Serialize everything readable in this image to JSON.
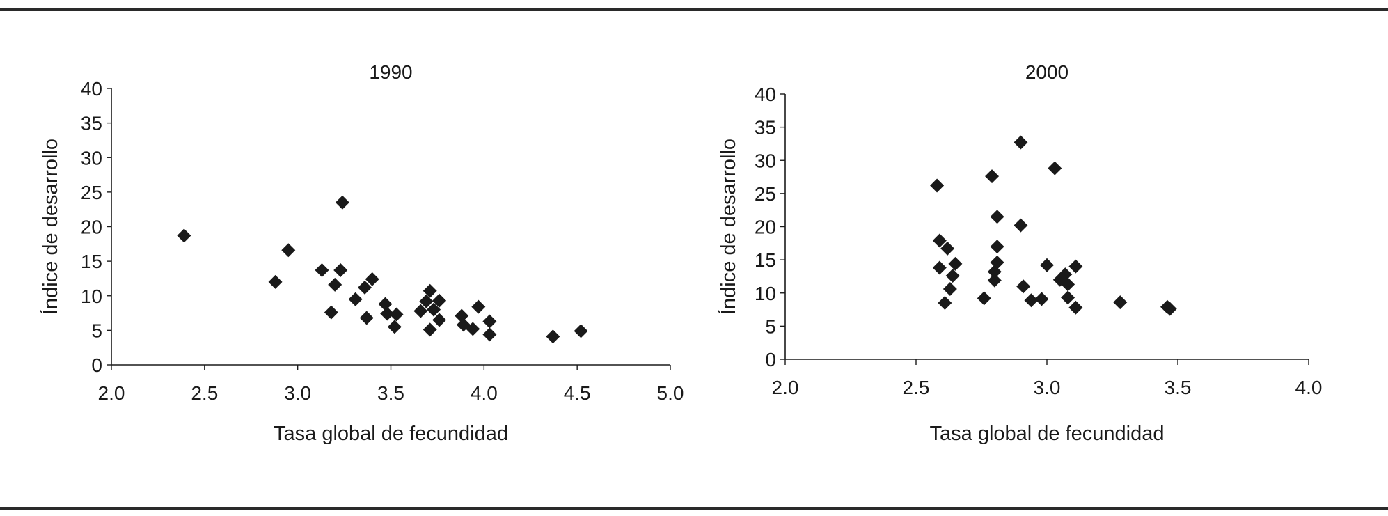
{
  "chart_data": [
    {
      "type": "scatter",
      "title": "1990",
      "xlabel": "Tasa global de fecundidad",
      "ylabel": "Índice de desarrollo",
      "xlim": [
        2.0,
        5.0
      ],
      "ylim": [
        0,
        40
      ],
      "xticks": [
        "2.0",
        "2.5",
        "3.0",
        "3.5",
        "4.0",
        "4.5",
        "5.0"
      ],
      "yticks": [
        "0",
        "5",
        "10",
        "15",
        "20",
        "25",
        "30",
        "35",
        "40"
      ],
      "marker": "diamond",
      "color": "#1a1a1a",
      "points": [
        {
          "x": 2.39,
          "y": 18.7
        },
        {
          "x": 2.88,
          "y": 12.0
        },
        {
          "x": 2.95,
          "y": 16.6
        },
        {
          "x": 3.13,
          "y": 13.7
        },
        {
          "x": 3.18,
          "y": 7.6
        },
        {
          "x": 3.2,
          "y": 11.6
        },
        {
          "x": 3.23,
          "y": 13.7
        },
        {
          "x": 3.24,
          "y": 23.5
        },
        {
          "x": 3.31,
          "y": 9.5
        },
        {
          "x": 3.36,
          "y": 11.2
        },
        {
          "x": 3.37,
          "y": 6.8
        },
        {
          "x": 3.4,
          "y": 12.4
        },
        {
          "x": 3.47,
          "y": 8.8
        },
        {
          "x": 3.48,
          "y": 7.4
        },
        {
          "x": 3.52,
          "y": 5.5
        },
        {
          "x": 3.53,
          "y": 7.3
        },
        {
          "x": 3.66,
          "y": 7.8
        },
        {
          "x": 3.69,
          "y": 9.2
        },
        {
          "x": 3.71,
          "y": 10.7
        },
        {
          "x": 3.71,
          "y": 5.1
        },
        {
          "x": 3.73,
          "y": 8.0
        },
        {
          "x": 3.76,
          "y": 9.3
        },
        {
          "x": 3.76,
          "y": 6.5
        },
        {
          "x": 3.88,
          "y": 7.1
        },
        {
          "x": 3.89,
          "y": 5.8
        },
        {
          "x": 3.94,
          "y": 5.2
        },
        {
          "x": 3.97,
          "y": 8.4
        },
        {
          "x": 4.03,
          "y": 6.3
        },
        {
          "x": 4.03,
          "y": 4.4
        },
        {
          "x": 4.37,
          "y": 4.1
        },
        {
          "x": 4.52,
          "y": 4.9
        }
      ]
    },
    {
      "type": "scatter",
      "title": "2000",
      "xlabel": "Tasa global de fecundidad",
      "ylabel": "Índice de desarrollo",
      "xlim": [
        2.0,
        4.0
      ],
      "ylim": [
        0,
        40
      ],
      "xticks": [
        "2.0",
        "2.5",
        "3.0",
        "3.5",
        "4.0"
      ],
      "yticks": [
        "0",
        "5",
        "10",
        "15",
        "20",
        "25",
        "30",
        "35",
        "40"
      ],
      "marker": "diamond",
      "color": "#1a1a1a",
      "points": [
        {
          "x": 2.58,
          "y": 26.2
        },
        {
          "x": 2.59,
          "y": 17.9
        },
        {
          "x": 2.59,
          "y": 13.8
        },
        {
          "x": 2.61,
          "y": 8.5
        },
        {
          "x": 2.62,
          "y": 16.7
        },
        {
          "x": 2.63,
          "y": 10.6
        },
        {
          "x": 2.64,
          "y": 12.6
        },
        {
          "x": 2.65,
          "y": 14.4
        },
        {
          "x": 2.76,
          "y": 9.2
        },
        {
          "x": 2.79,
          "y": 27.6
        },
        {
          "x": 2.8,
          "y": 11.9
        },
        {
          "x": 2.8,
          "y": 13.2
        },
        {
          "x": 2.81,
          "y": 17.0
        },
        {
          "x": 2.81,
          "y": 21.5
        },
        {
          "x": 2.81,
          "y": 14.6
        },
        {
          "x": 2.9,
          "y": 32.7
        },
        {
          "x": 2.9,
          "y": 20.2
        },
        {
          "x": 2.91,
          "y": 11.0
        },
        {
          "x": 2.94,
          "y": 8.9
        },
        {
          "x": 2.98,
          "y": 9.1
        },
        {
          "x": 3.0,
          "y": 14.2
        },
        {
          "x": 3.03,
          "y": 28.8
        },
        {
          "x": 3.05,
          "y": 12.0
        },
        {
          "x": 3.07,
          "y": 12.8
        },
        {
          "x": 3.08,
          "y": 11.3
        },
        {
          "x": 3.08,
          "y": 9.3
        },
        {
          "x": 3.11,
          "y": 7.8
        },
        {
          "x": 3.11,
          "y": 14.0
        },
        {
          "x": 3.28,
          "y": 8.6
        },
        {
          "x": 3.46,
          "y": 7.9
        },
        {
          "x": 3.47,
          "y": 7.6
        }
      ]
    }
  ]
}
